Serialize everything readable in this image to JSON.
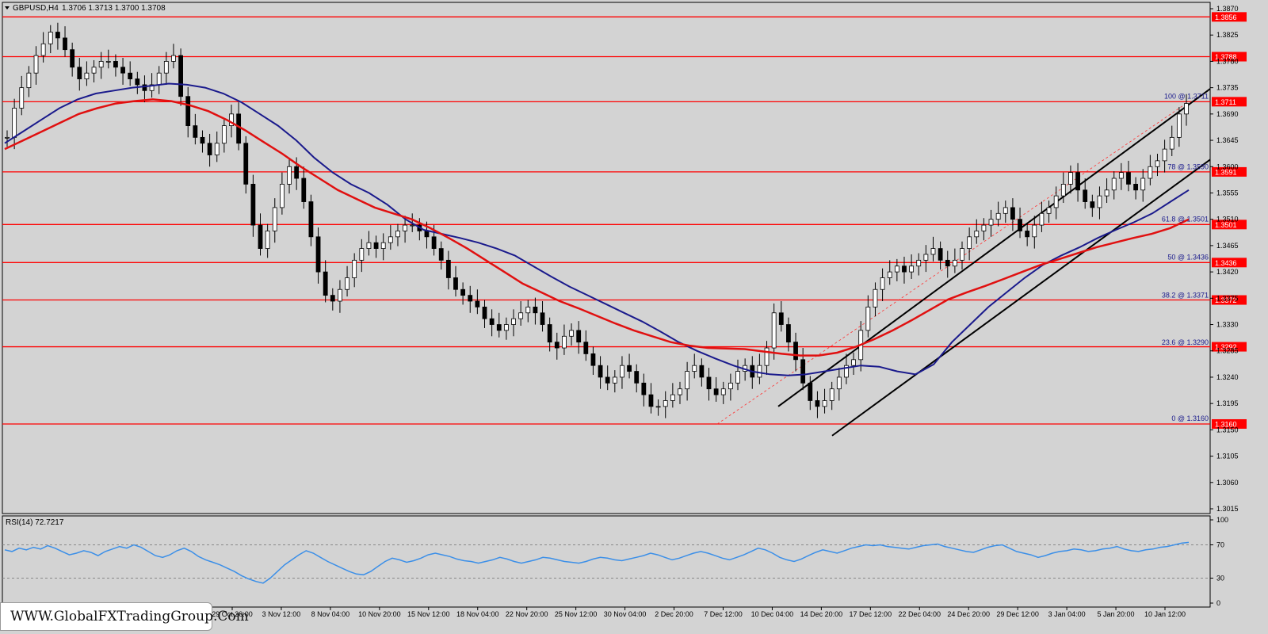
{
  "header": {
    "symbol_timeframe": "GBPUSD,H4",
    "ohlc": "1.3706 1.3713 1.3700 1.3708"
  },
  "rsi_label": "RSI(14) 72.7217",
  "watermark": "WWW.GlobalFXTradingGroup.Com",
  "colors": {
    "background": "#d3d3d3",
    "price_bar": "#000000",
    "fast_ma": "#1a1a8c",
    "slow_ma": "#e01010",
    "level_line": "#ff0000",
    "rsi_line": "#3b8fe8",
    "channel": "#000000"
  },
  "chart_data": [
    {
      "type": "line",
      "title": "",
      "ylim": [
        1.3015,
        1.387
      ],
      "y_ticks": [
        "1.3870",
        "1.3825",
        "1.3780",
        "1.3735",
        "1.3690",
        "1.3645",
        "1.3600",
        "1.3555",
        "1.3510",
        "1.3465",
        "1.3420",
        "1.3375",
        "1.3330",
        "1.3285",
        "1.3240",
        "1.3195",
        "1.3150",
        "1.3105",
        "1.3060",
        "1.3015"
      ],
      "x_ticks": [
        "29 Oct 20:00",
        "3 Nov 12:00",
        "8 Nov 04:00",
        "10 Nov 20:00",
        "15 Nov 12:00",
        "18 Nov 04:00",
        "22 Nov 20:00",
        "25 Nov 12:00",
        "30 Nov 04:00",
        "2 Dec 20:00",
        "7 Dec 12:00",
        "10 Dec 04:00",
        "14 Dec 20:00",
        "17 Dec 12:00",
        "22 Dec 04:00",
        "24 Dec 20:00",
        "29 Dec 12:00",
        "3 Jan 04:00",
        "5 Jan 20:00",
        "10 Jan 12:00"
      ],
      "horizontal_levels": [
        {
          "label": "1.3856"
        },
        {
          "label": "1.3788"
        },
        {
          "label": "1.3711"
        },
        {
          "label": "1.3591"
        },
        {
          "label": "1.3501"
        },
        {
          "label": "1.3436"
        },
        {
          "label": "1.3372"
        },
        {
          "label": "1.3292"
        },
        {
          "label": "1.3160"
        }
      ],
      "fibonacci_labels": [
        "100 @ 1.3711",
        "78 @ 1.3590",
        "61.8 @ 1.3501",
        "50 @ 1.3436",
        "38.2 @ 1.3371",
        "23.6 @ 1.3290",
        "0 @ 1.3160"
      ],
      "series": [
        {
          "values": [
            1.365,
            1.37,
            1.3735,
            1.376,
            1.379,
            1.381,
            1.383,
            1.382,
            1.38,
            1.377,
            1.375,
            1.376,
            1.377,
            1.378,
            1.378,
            1.377,
            1.376,
            1.375,
            1.374,
            1.373,
            1.374,
            1.376,
            1.378,
            1.379,
            1.372,
            1.367,
            1.365,
            1.364,
            1.362,
            1.364,
            1.367,
            1.369,
            1.364,
            1.357,
            1.35,
            1.346,
            1.349,
            1.353,
            1.357,
            1.36,
            1.358,
            1.354,
            1.348,
            1.342,
            1.338,
            1.337,
            1.339,
            1.341,
            1.344,
            1.346,
            1.347,
            1.346,
            1.347,
            1.348,
            1.349,
            1.35,
            1.35,
            1.349,
            1.348,
            1.346,
            1.344,
            1.341,
            1.339,
            1.338,
            1.337,
            1.336,
            1.334,
            1.333,
            1.332,
            1.333,
            1.334,
            1.335,
            1.336,
            1.335,
            1.333,
            1.33,
            1.329,
            1.331,
            1.332,
            1.33,
            1.328,
            1.326,
            1.324,
            1.323,
            1.324,
            1.326,
            1.325,
            1.323,
            1.321,
            1.319,
            1.319,
            1.32,
            1.321,
            1.322,
            1.325,
            1.326,
            1.324,
            1.322,
            1.321,
            1.322,
            1.323,
            1.325,
            1.326,
            1.324,
            1.326,
            1.329,
            1.335,
            1.333,
            1.33,
            1.327,
            1.323,
            1.32,
            1.319,
            1.32,
            1.322,
            1.324,
            1.326,
            1.327,
            1.332,
            1.336,
            1.339,
            1.341,
            1.342,
            1.343,
            1.342,
            1.343,
            1.344,
            1.345,
            1.346,
            1.344,
            1.343,
            1.344,
            1.346,
            1.348,
            1.349,
            1.35,
            1.351,
            1.352,
            1.353,
            1.351,
            1.349,
            1.348,
            1.35,
            1.352,
            1.353,
            1.355,
            1.357,
            1.359,
            1.356,
            1.354,
            1.353,
            1.355,
            1.356,
            1.358,
            1.359,
            1.357,
            1.356,
            1.358,
            1.36,
            1.361,
            1.363,
            1.365,
            1.369,
            1.3708
          ]
        },
        {
          "name": "",
          "values": [
            1.364,
            1.366,
            1.368,
            1.37,
            1.3715,
            1.3725,
            1.373,
            1.3735,
            1.3738,
            1.3742,
            1.374,
            1.3735,
            1.3725,
            1.371,
            1.369,
            1.367,
            1.3645,
            1.3615,
            1.359,
            1.357,
            1.3555,
            1.3535,
            1.351,
            1.3492,
            1.3485,
            1.3478,
            1.347,
            1.346,
            1.3448,
            1.343,
            1.3412,
            1.3395,
            1.338,
            1.3365,
            1.335,
            1.3335,
            1.3318,
            1.33,
            1.3285,
            1.3272,
            1.326,
            1.325,
            1.3245,
            1.3243,
            1.3245,
            1.325,
            1.3255,
            1.326,
            1.3258,
            1.325,
            1.3245,
            1.3262,
            1.33,
            1.333,
            1.336,
            1.3385,
            1.341,
            1.3432,
            1.3448,
            1.3462,
            1.3478,
            1.3492,
            1.3505,
            1.352,
            1.354,
            1.356
          ]
        },
        {
          "name": "",
          "values": [
            1.363,
            1.3645,
            1.366,
            1.3675,
            1.369,
            1.37,
            1.3708,
            1.3712,
            1.3715,
            1.3712,
            1.3705,
            1.3695,
            1.368,
            1.3662,
            1.3642,
            1.3622,
            1.36,
            1.358,
            1.356,
            1.3545,
            1.353,
            1.352,
            1.351,
            1.3495,
            1.3478,
            1.346,
            1.344,
            1.342,
            1.34,
            1.3385,
            1.337,
            1.3358,
            1.3345,
            1.3332,
            1.332,
            1.331,
            1.33,
            1.3294,
            1.329,
            1.3289,
            1.3288,
            1.3284,
            1.328,
            1.3277,
            1.3277,
            1.3282,
            1.3292,
            1.3305,
            1.332,
            1.3337,
            1.3355,
            1.3373,
            1.3385,
            1.3396,
            1.3408,
            1.342,
            1.3432,
            1.3442,
            1.3452,
            1.3462,
            1.347,
            1.3478,
            1.3485,
            1.3495,
            1.351
          ]
        }
      ]
    },
    {
      "type": "line",
      "title": "",
      "ylim": [
        0,
        100
      ],
      "y_ticks": [
        "100",
        "70",
        "30",
        "0"
      ],
      "series": [
        {
          "values": [
            64,
            62,
            66,
            64,
            67,
            65,
            69,
            66,
            62,
            58,
            60,
            63,
            61,
            57,
            62,
            65,
            68,
            66,
            70,
            67,
            62,
            57,
            55,
            58,
            63,
            66,
            62,
            56,
            52,
            49,
            46,
            42,
            38,
            33,
            29,
            26,
            24,
            30,
            38,
            46,
            52,
            58,
            63,
            60,
            55,
            50,
            46,
            42,
            38,
            35,
            34,
            38,
            44,
            50,
            54,
            52,
            49,
            51,
            54,
            58,
            60,
            58,
            56,
            53,
            51,
            50,
            48,
            50,
            52,
            55,
            53,
            50,
            48,
            50,
            52,
            55,
            54,
            52,
            50,
            49,
            48,
            50,
            53,
            55,
            54,
            52,
            51,
            53,
            55,
            57,
            60,
            58,
            55,
            52,
            54,
            57,
            60,
            62,
            60,
            57,
            54,
            52,
            55,
            58,
            62,
            66,
            64,
            60,
            55,
            52,
            50,
            53,
            57,
            61,
            64,
            62,
            60,
            63,
            66,
            68,
            70,
            69,
            70,
            68,
            67,
            66,
            65,
            67,
            69,
            70,
            71,
            68,
            66,
            64,
            62,
            61,
            64,
            67,
            69,
            70,
            66,
            62,
            60,
            58,
            55,
            57,
            60,
            62,
            63,
            65,
            64,
            62,
            63,
            65,
            66,
            68,
            65,
            63,
            62,
            64,
            65,
            67,
            68,
            70,
            72,
            73
          ]
        }
      ]
    }
  ]
}
